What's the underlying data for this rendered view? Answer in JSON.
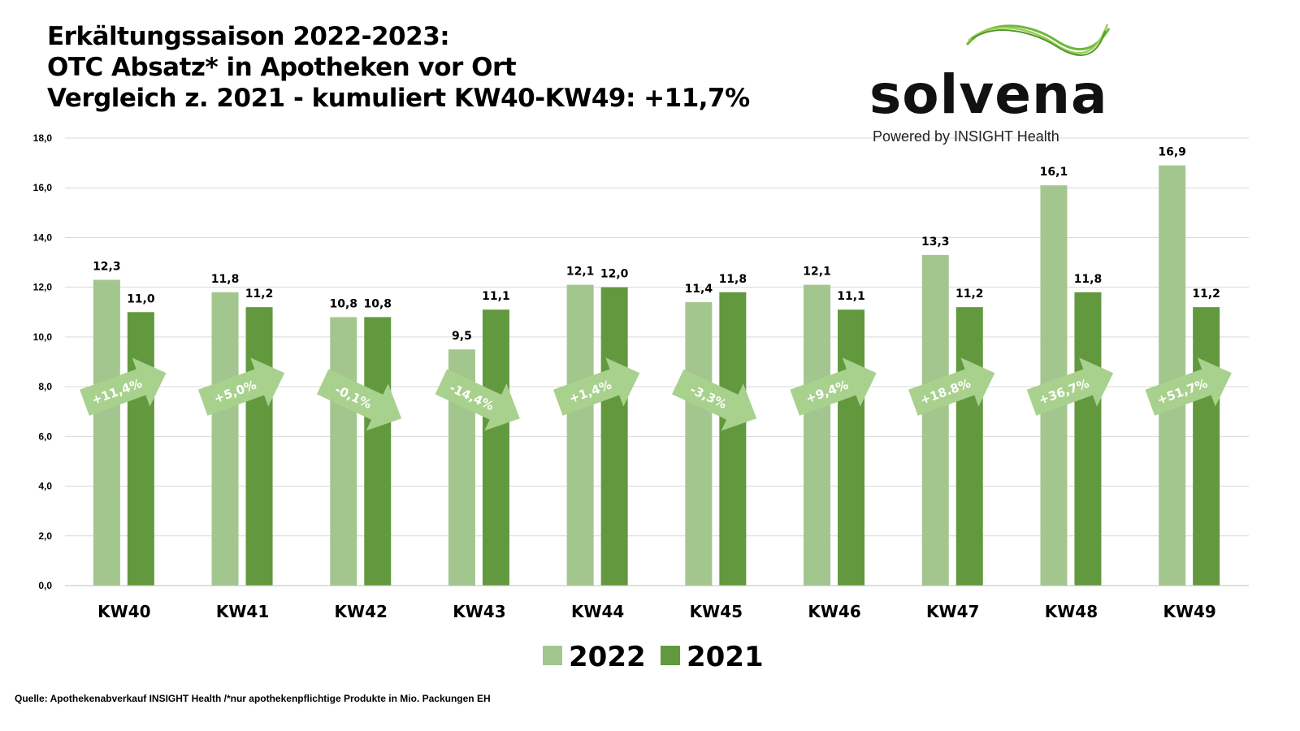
{
  "title": [
    "Erkältungssaison 2022-2023:",
    "OTC Absatz* in Apotheken vor Ort",
    "Vergleich z. 2021 - kumuliert KW40-KW49: +11,7%"
  ],
  "logo": {
    "word": "solvena",
    "sub": "Powered by INSIGHT Health"
  },
  "source": "Quelle: Apothekenabverkauf INSIGHT Health /*nur apothekenpflichtige Produkte in Mio. Packungen EH",
  "chart_data": {
    "type": "bar",
    "categories": [
      "KW40",
      "KW41",
      "KW42",
      "KW43",
      "KW44",
      "KW45",
      "KW46",
      "KW47",
      "KW48",
      "KW49"
    ],
    "series": [
      {
        "name": "2022",
        "color": "#a3c68f",
        "values": [
          12.3,
          11.8,
          10.8,
          9.5,
          12.1,
          11.4,
          12.1,
          13.3,
          16.1,
          16.9
        ],
        "labels": [
          "12,3",
          "11,8",
          "10,8",
          "9,5",
          "12,1",
          "11,4",
          "12,1",
          "13,3",
          "16,1",
          "16,9"
        ]
      },
      {
        "name": "2021",
        "color": "#62993e",
        "values": [
          11.0,
          11.2,
          10.8,
          11.1,
          12.0,
          11.8,
          11.1,
          11.2,
          11.8,
          11.2
        ],
        "labels": [
          "11,0",
          "11,2",
          "10,8",
          "11,1",
          "12,0",
          "11,8",
          "11,1",
          "11,2",
          "11,8",
          "11,2"
        ]
      }
    ],
    "changes": [
      "+11,4%",
      "+5,0%",
      "-0,1%",
      "-14,4%",
      "+1,4%",
      "-3,3%",
      "+9,4%",
      "+18.8%",
      "+36,7%",
      "+51,7%"
    ],
    "arrow_color": "#a8d18d",
    "ylim": [
      0,
      18
    ],
    "yticks": [
      "0,0",
      "2,0",
      "4,0",
      "6,0",
      "8,0",
      "10,0",
      "12,0",
      "14,0",
      "16,0",
      "18,0"
    ],
    "grid": true,
    "legend": "bottom"
  }
}
